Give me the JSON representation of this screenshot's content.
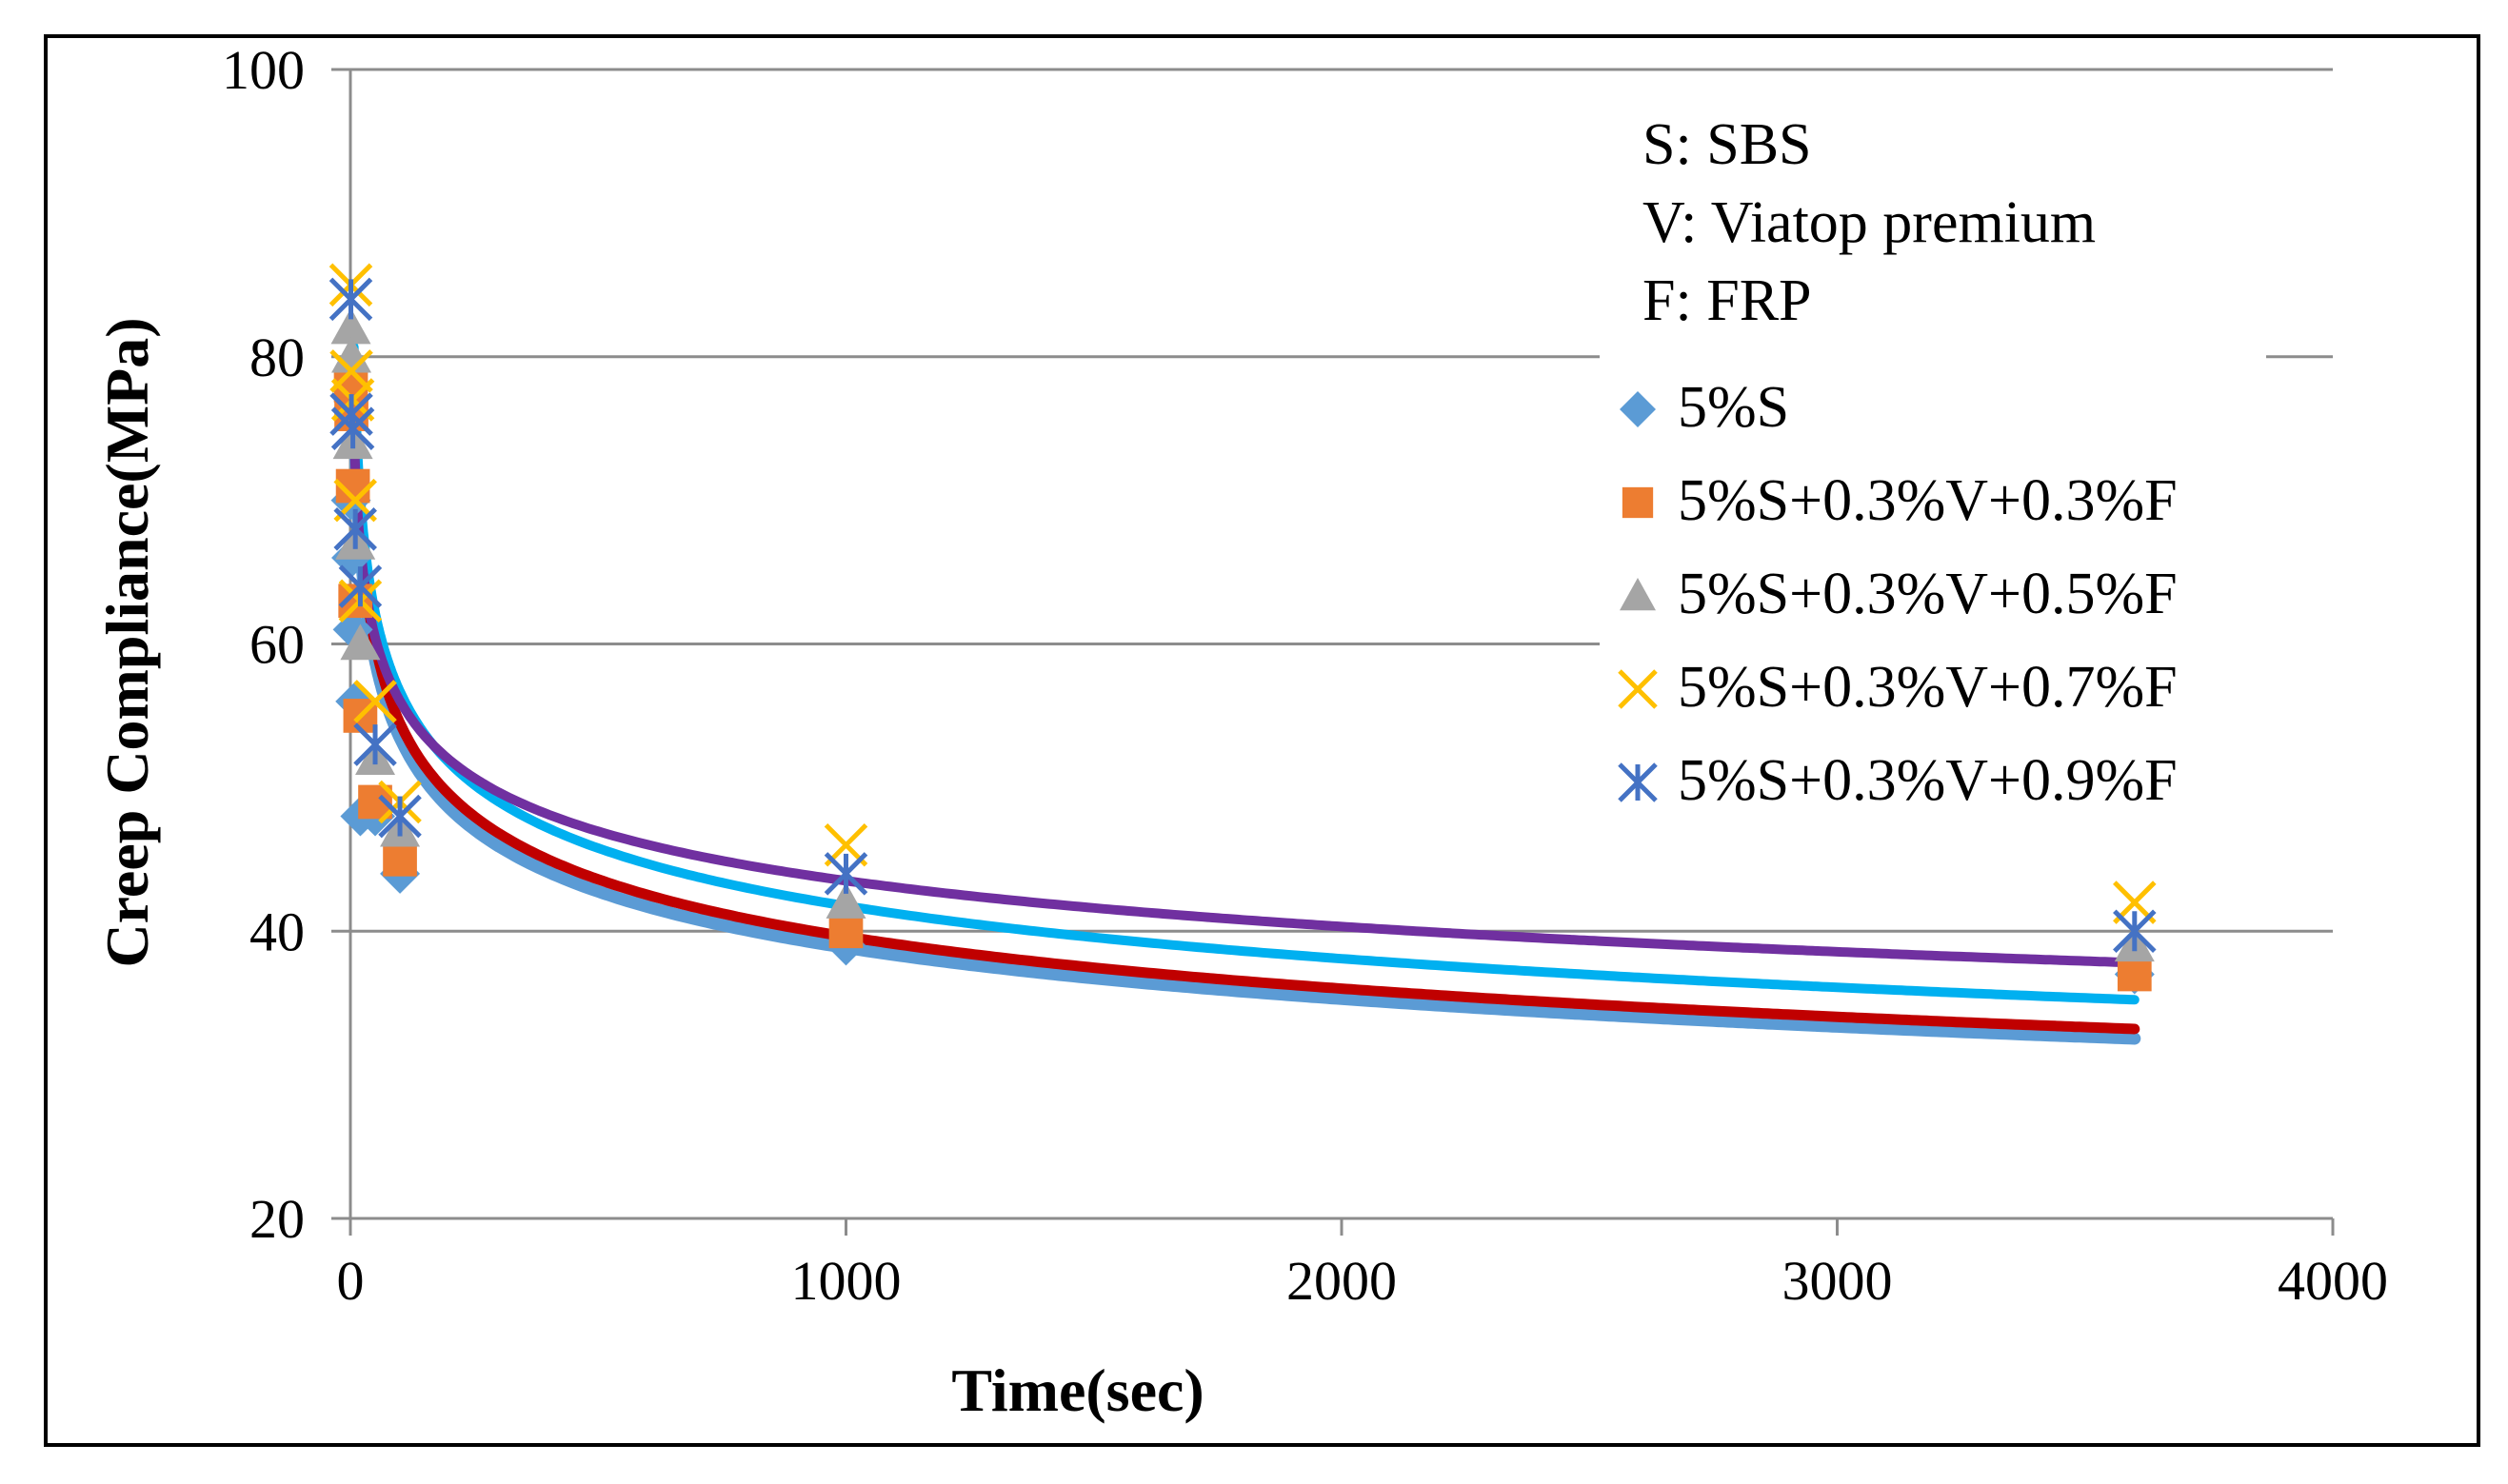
{
  "chart_data": {
    "type": "scatter",
    "title": "",
    "xlabel": "Time(sec)",
    "ylabel": "Creep Compliance(MPa)",
    "xlim": [
      0,
      4000
    ],
    "ylim": [
      20,
      100
    ],
    "xticks": [
      0,
      1000,
      2000,
      3000,
      4000
    ],
    "yticks": [
      20,
      40,
      60,
      80,
      100
    ],
    "grid": "horizontal",
    "legend_position": "right",
    "notes": [
      "S: SBS",
      "V: Viatop premium",
      "F: FRP"
    ],
    "series": [
      {
        "name": "5%S",
        "marker": "diamond",
        "color": "#5B9BD5",
        "x": [
          1,
          2,
          5,
          10,
          20,
          50,
          100,
          1000,
          3600
        ],
        "y": [
          70,
          66,
          61,
          56,
          48,
          48,
          44,
          39,
          37
        ],
        "trend": {
          "a": 101.2,
          "b": -0.1386,
          "color": "#5B9BD5"
        }
      },
      {
        "name": "5%S+0.3%V+0.3%F",
        "marker": "square",
        "color": "#ED7D31",
        "x": [
          1,
          2,
          5,
          10,
          20,
          50,
          100,
          1000,
          3600
        ],
        "y": [
          78,
          76,
          71,
          63,
          55,
          49,
          45,
          40,
          37
        ],
        "trend": {
          "a": 103.0,
          "b": -0.1383,
          "color": "#C00000"
        }
      },
      {
        "name": "5%S+0.3%V+0.5%F",
        "marker": "triangle",
        "color": "#A5A5A5",
        "x": [
          1,
          2,
          5,
          10,
          20,
          50,
          100,
          1000,
          3600
        ],
        "y": [
          82,
          80,
          74,
          67,
          60,
          52,
          47,
          42,
          39
        ],
        "trend": {
          "a": 104.5,
          "b": -0.1328,
          "color": "#70AD47"
        }
      },
      {
        "name": "5%S+0.3%V+0.7%F",
        "marker": "x",
        "color": "#FFC000",
        "x": [
          1,
          2,
          5,
          10,
          20,
          50,
          100,
          1000,
          3600
        ],
        "y": [
          85,
          79,
          77,
          70,
          63,
          56,
          49,
          46,
          42
        ],
        "trend": {
          "a": 104.5,
          "b": -0.1328,
          "color": "#00B0F0"
        }
      },
      {
        "name": "5%S+0.3%V+0.9%F",
        "marker": "asterisk",
        "color": "#4472C4",
        "x": [
          1,
          2,
          5,
          10,
          20,
          50,
          100,
          1000,
          3600
        ],
        "y": [
          84,
          76,
          75,
          68,
          64,
          53,
          48,
          44,
          40
        ],
        "trend": {
          "a": 92.9,
          "b": -0.1098,
          "color": "#7030A0"
        }
      }
    ]
  }
}
